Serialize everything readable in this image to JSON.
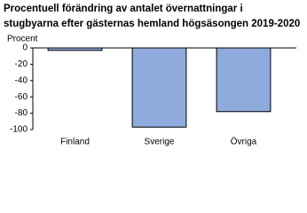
{
  "chart_data": {
    "type": "bar",
    "title": [
      "Procentuell förändring av antalet övernattningar i",
      "stugbyarna efter gästernas hemland högsäsongen 2019-2020"
    ],
    "y_label": "Procent",
    "categories": [
      "Finland",
      "Sverige",
      "Övriga"
    ],
    "values": [
      -3,
      -97,
      -78
    ],
    "color": "#8faadc",
    "ylim": [
      -100,
      0
    ],
    "yticks": [
      0,
      -20,
      -40,
      -60,
      -80,
      -100
    ],
    "grid": false
  }
}
